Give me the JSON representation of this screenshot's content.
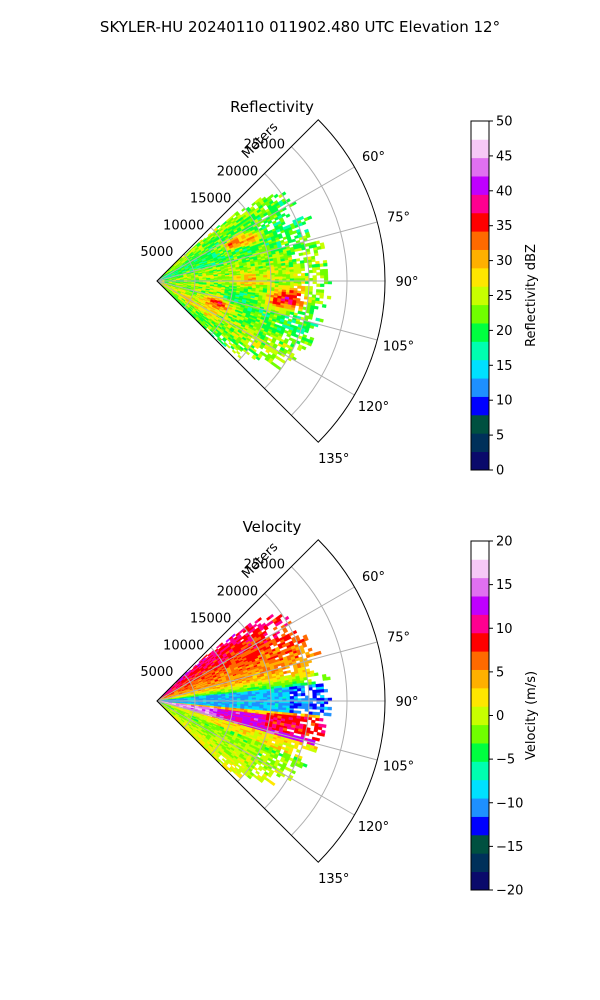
{
  "figure": {
    "suptitle": "SKYLER-HU  20240110  011902.480 UTC Elevation 12°"
  },
  "chart_data": [
    {
      "type": "heatmap",
      "subtype": "polar-sector (PPI radar scan)",
      "title": "Reflectivity",
      "radial_axis_label": "Meters",
      "radial_ticks": [
        5000,
        10000,
        15000,
        20000,
        25000
      ],
      "radial_tick_labels": [
        "5000",
        "10000",
        "15000",
        "20000",
        "25000"
      ],
      "rlim": [
        0,
        30000
      ],
      "theta_range_deg": [
        45,
        135
      ],
      "theta_ticks_deg": [
        60,
        75,
        90,
        105,
        120,
        135
      ],
      "theta_tick_labels": [
        "60°",
        "75°",
        "90°",
        "105°",
        "120°",
        "135°"
      ],
      "colorbar": {
        "label": "Reflectivity dBZ",
        "range": [
          0,
          50
        ],
        "ticks": [
          0,
          5,
          10,
          15,
          20,
          25,
          30,
          35,
          40,
          45,
          50
        ],
        "tick_labels": [
          "0",
          "5",
          "10",
          "15",
          "20",
          "25",
          "30",
          "35",
          "40",
          "45",
          "50"
        ],
        "colors": [
          "#0a0a6b",
          "#00305a",
          "#005040",
          "#0000ff",
          "#1e90ff",
          "#00e0ff",
          "#00ffb0",
          "#00ff40",
          "#70ff00",
          "#c8ff00",
          "#ffe600",
          "#ffb000",
          "#ff6a00",
          "#ff0000",
          "#ff0090",
          "#c000ff",
          "#e070f0",
          "#f6c8f6",
          "#ffffff"
        ]
      },
      "data_extent_r_m": [
        0,
        22000
      ],
      "data_summary": "Mostly 18–28 dBZ green/yellow echoes across the sector, with embedded red cores of about 33–38 dBZ near 64°/11 km, 66°/13 km, 97°/18 km, 99°/16 km and 110°/8 km.",
      "grid": true
    },
    {
      "type": "heatmap",
      "subtype": "polar-sector (PPI radar scan)",
      "title": "Velocity",
      "radial_axis_label": "Meters",
      "radial_ticks": [
        5000,
        10000,
        15000,
        20000,
        25000
      ],
      "radial_tick_labels": [
        "5000",
        "10000",
        "15000",
        "20000",
        "25000"
      ],
      "rlim": [
        0,
        30000
      ],
      "theta_range_deg": [
        45,
        135
      ],
      "theta_ticks_deg": [
        60,
        75,
        90,
        105,
        120,
        135
      ],
      "theta_tick_labels": [
        "60°",
        "75°",
        "90°",
        "105°",
        "120°",
        "135°"
      ],
      "colorbar": {
        "label": "Velocity (m/s)",
        "range": [
          -20,
          20
        ],
        "ticks": [
          -20,
          -15,
          -10,
          -5,
          0,
          5,
          10,
          15,
          20
        ],
        "tick_labels": [
          "−20",
          "−15",
          "−10",
          "−5",
          "0",
          "5",
          "10",
          "15",
          "20"
        ],
        "colors": [
          "#0a0a6b",
          "#00305a",
          "#005040",
          "#0000ff",
          "#1e90ff",
          "#00e0ff",
          "#00ffb0",
          "#00ff40",
          "#70ff00",
          "#c8ff00",
          "#ffe600",
          "#ffb000",
          "#ff6a00",
          "#ff0000",
          "#ff0090",
          "#c000ff",
          "#e070f0",
          "#f6c8f6",
          "#ffffff"
        ]
      },
      "data_extent_r_m": [
        0,
        22000
      ],
      "data_summary": "Red/orange (+5 to +12 m/s) in the northern part (60–80°), cyan/green (−12 to −6 m/s) along 85–95°, magenta/red (+10 to +17 m/s) along 97–105°, yellow/green (0 to −5 m/s) toward 110–125°.",
      "grid": true
    }
  ]
}
